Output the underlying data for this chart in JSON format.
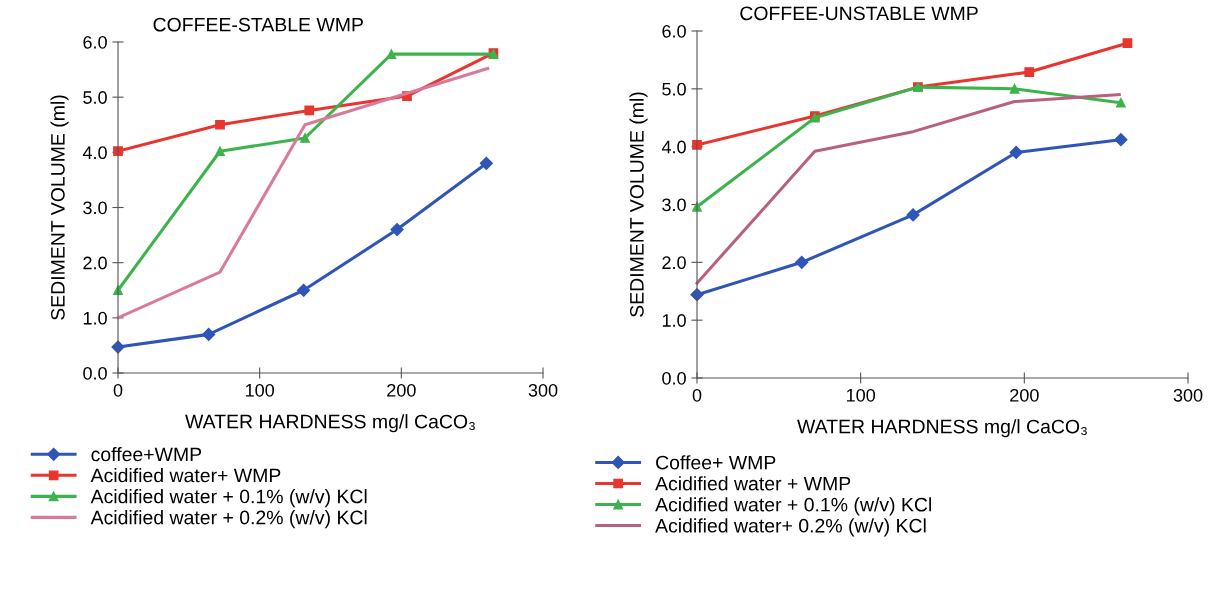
{
  "chart_data": [
    {
      "type": "line",
      "title": "COFFEE-STABLE WMP",
      "xlabel": "WATER HARDNESS mg/l CaCO₃",
      "ylabel": "SEDIMENT VOLUME (ml)",
      "xlim": [
        0,
        300
      ],
      "xticks": [
        0,
        100,
        200,
        300
      ],
      "ylim": [
        0,
        6
      ],
      "yticks": [
        {
          "value": 0,
          "label": "0.0"
        },
        {
          "value": 1,
          "label": "1.0"
        },
        {
          "value": 2,
          "label": "2.0"
        },
        {
          "value": 3,
          "label": "3.0"
        },
        {
          "value": 4,
          "label": "4.0"
        },
        {
          "value": 5,
          "label": "5.0"
        },
        {
          "value": 6,
          "label": "6.0"
        }
      ],
      "grid": false,
      "legend": "bottom",
      "line_style": "solid",
      "series": [
        {
          "name": "coffee+WMP",
          "color": "#2f55b8",
          "marker": "diamond",
          "x": [
            0,
            64,
            131,
            197,
            260
          ],
          "values": [
            0.47,
            0.7,
            1.5,
            2.6,
            3.8
          ]
        },
        {
          "name": "Acidified water+ WMP",
          "color": "#e8352e",
          "marker": "square",
          "x": [
            0,
            72,
            135,
            204,
            265
          ],
          "values": [
            4.02,
            4.5,
            4.76,
            5.02,
            5.8
          ]
        },
        {
          "name": "Acidified water + 0.1% (w/v) KCl",
          "color": "#3cb44b",
          "marker": "triangle",
          "x": [
            0,
            72,
            132,
            193,
            265
          ],
          "values": [
            1.5,
            4.02,
            4.26,
            5.78,
            5.78
          ]
        },
        {
          "name": "Acidified water + 0.2% (w/v) KCl",
          "color": "#d97a9a",
          "marker": "none",
          "x": [
            0,
            72,
            132,
            261
          ],
          "values": [
            1.0,
            1.83,
            4.5,
            5.52
          ]
        }
      ]
    },
    {
      "type": "line",
      "title": "COFFEE-UNSTABLE WMP",
      "xlabel": "WATER HARDNESS mg/l CaCO₃",
      "ylabel": "SEDIMENT VOLUME (ml)",
      "xlim": [
        0,
        300
      ],
      "xticks": [
        0,
        100,
        200,
        300
      ],
      "ylim": [
        0,
        6
      ],
      "yticks": [
        {
          "value": 0,
          "label": "0.0"
        },
        {
          "value": 1,
          "label": "1.0"
        },
        {
          "value": 2,
          "label": "2.0"
        },
        {
          "value": 3,
          "label": "3.0"
        },
        {
          "value": 4,
          "label": "4.0"
        },
        {
          "value": 5,
          "label": "5.0"
        },
        {
          "value": 6,
          "label": "6.0"
        }
      ],
      "grid": false,
      "legend": "bottom",
      "line_style": "solid",
      "series": [
        {
          "name": "Coffee+ WMP",
          "color": "#2f55b8",
          "marker": "diamond",
          "x": [
            0,
            64,
            132,
            195,
            259
          ],
          "values": [
            1.44,
            2.0,
            2.82,
            3.9,
            4.12
          ]
        },
        {
          "name": "Acidified water + WMP",
          "color": "#e8352e",
          "marker": "square",
          "x": [
            0,
            72,
            135,
            203,
            263
          ],
          "values": [
            4.03,
            4.53,
            5.03,
            5.29,
            5.79
          ]
        },
        {
          "name": "Acidified water + 0.1% (w/v) KCl",
          "color": "#3cb44b",
          "marker": "triangle",
          "x": [
            0,
            72,
            135,
            194,
            259
          ],
          "values": [
            2.96,
            4.5,
            5.03,
            5.0,
            4.76
          ]
        },
        {
          "name": "Acidified water+ 0.2% (w/v) KCl",
          "color": "#b8607e",
          "marker": "none",
          "x": [
            0,
            72,
            132,
            194,
            258
          ],
          "values": [
            1.64,
            3.92,
            4.26,
            4.78,
            4.9
          ]
        }
      ]
    }
  ]
}
